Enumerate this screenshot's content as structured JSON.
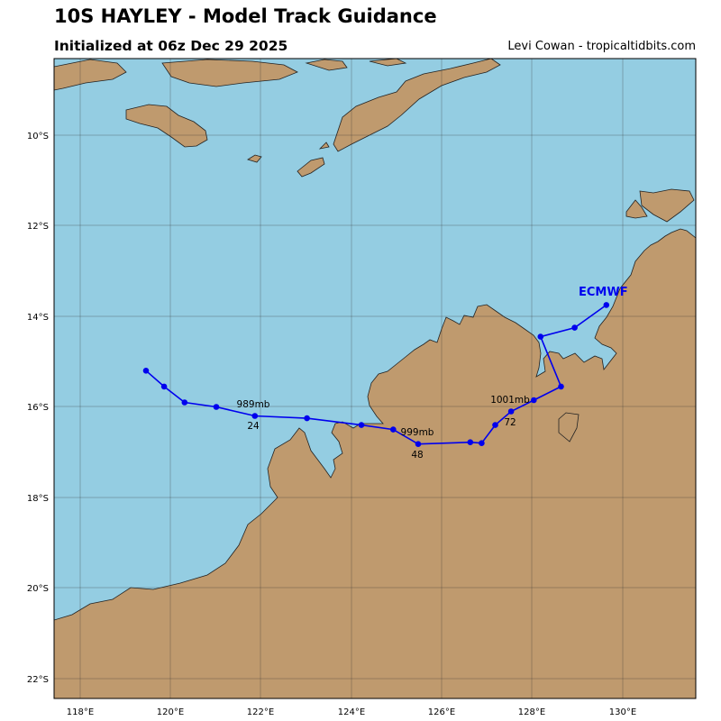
{
  "header": {
    "title": "10S HAYLEY - Model Track Guidance",
    "subtitle": "Initialized at 06z Dec 29 2025",
    "credit": "Levi Cowan - tropicaltidbits.com"
  },
  "colors": {
    "ocean": "#94cde2",
    "land": "#bf9a6e",
    "track": "#0000ee",
    "grid": "#333333"
  },
  "map": {
    "lon_ticks": [
      "118°E",
      "120°E",
      "122°E",
      "124°E",
      "126°E",
      "128°E",
      "130°E"
    ],
    "lat_ticks": [
      "10°S",
      "12°S",
      "14°S",
      "16°S",
      "18°S",
      "20°S",
      "22°S"
    ]
  },
  "track": {
    "model": "ECMWF",
    "points": [
      {
        "lon": 129.6,
        "lat": -13.75
      },
      {
        "lon": 128.9,
        "lat": -14.25
      },
      {
        "lon": 128.15,
        "lat": -14.45
      },
      {
        "lon": 128.6,
        "lat": -15.55
      },
      {
        "lon": 128.0,
        "lat": -15.85
      },
      {
        "lon": 127.5,
        "lat": -16.1
      },
      {
        "lon": 127.15,
        "lat": -16.4
      },
      {
        "lon": 126.85,
        "lat": -16.8
      },
      {
        "lon": 126.6,
        "lat": -16.78
      },
      {
        "lon": 125.45,
        "lat": -16.82
      },
      {
        "lon": 124.9,
        "lat": -16.5
      },
      {
        "lon": 124.2,
        "lat": -16.4
      },
      {
        "lon": 123.0,
        "lat": -16.25
      },
      {
        "lon": 121.85,
        "lat": -16.2
      },
      {
        "lon": 121.0,
        "lat": -16.0
      },
      {
        "lon": 120.3,
        "lat": -15.9
      },
      {
        "lon": 119.85,
        "lat": -15.55
      },
      {
        "lon": 119.45,
        "lat": -15.2
      }
    ],
    "labels": [
      {
        "hour": "24",
        "pressure": "989mb"
      },
      {
        "hour": "48",
        "pressure": "999mb"
      },
      {
        "hour": "72",
        "pressure": "1001mb"
      }
    ]
  }
}
